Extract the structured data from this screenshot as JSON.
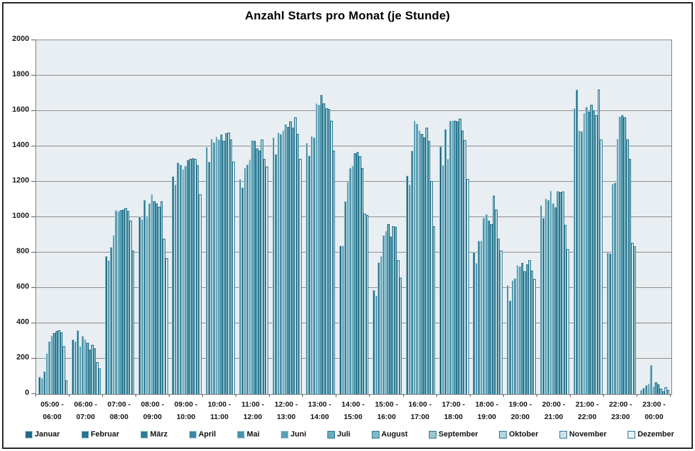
{
  "title": "Anzahl Starts pro Monat (je Stunde)",
  "colors": {
    "figure_bg": "#ffffff",
    "frame_border": "#262626",
    "plot_bg": "#e9eef2",
    "gridline": "#8c8c8c",
    "axis": "#595959",
    "text": "#111111"
  },
  "chart_data": {
    "type": "bar",
    "title": "Anzahl Starts pro Monat (je Stunde)",
    "xlabel": "",
    "ylabel": "",
    "ylim": [
      0,
      2000
    ],
    "ytick_step": 200,
    "yticks": [
      0,
      200,
      400,
      600,
      800,
      1000,
      1200,
      1400,
      1600,
      1800,
      2000
    ],
    "grid": true,
    "legend_position": "bottom",
    "categories": [
      [
        "05:00 -",
        "06:00"
      ],
      [
        "06:00 -",
        "07:00"
      ],
      [
        "07:00 -",
        "08:00"
      ],
      [
        "08:00 -",
        "09:00"
      ],
      [
        "09:00 -",
        "10:00"
      ],
      [
        "10:00 -",
        "11:00"
      ],
      [
        "11:00 -",
        "12:00"
      ],
      [
        "12:00 -",
        "13:00"
      ],
      [
        "13:00 -",
        "14:00"
      ],
      [
        "14:00 -",
        "15:00"
      ],
      [
        "15:00 -",
        "16:00"
      ],
      [
        "16:00 -",
        "17:00"
      ],
      [
        "17:00 -",
        "18:00"
      ],
      [
        "18:00 -",
        "19:00"
      ],
      [
        "19:00 -",
        "20:00"
      ],
      [
        "20:00 -",
        "21:00"
      ],
      [
        "21:00 -",
        "22:00"
      ],
      [
        "22:00 -",
        "23:00"
      ],
      [
        "23:00 -",
        "00:00"
      ]
    ],
    "series": [
      {
        "name": "Januar",
        "color": "#1e6c87",
        "border": "#a9cfda",
        "values": [
          100,
          310,
          780,
          1005,
          1230,
          1395,
          1215,
          1450,
          1420,
          840,
          590,
          1235,
          1400,
          805,
          615,
          1065,
          1615,
          800,
          25
        ]
      },
      {
        "name": "Februar",
        "color": "#26748f",
        "border": "#a9cfda",
        "values": [
          90,
          300,
          755,
          990,
          1185,
          1315,
          1170,
          1355,
          1350,
          840,
          555,
          1185,
          1295,
          740,
          530,
          995,
          1720,
          795,
          35
        ]
      },
      {
        "name": "März",
        "color": "#2f7d97",
        "border": "#a9cfda",
        "values": [
          130,
          360,
          830,
          1100,
          1310,
          1445,
          1280,
          1480,
          1460,
          1090,
          745,
          1375,
          1500,
          865,
          645,
          1105,
          1490,
          1190,
          50
        ]
      },
      {
        "name": "April",
        "color": "#3c88a0",
        "border": "#a9cfda",
        "values": [
          230,
          270,
          900,
          1000,
          1300,
          1425,
          1300,
          1470,
          1450,
          1200,
          780,
          1545,
          1330,
          865,
          655,
          1100,
          1485,
          1195,
          60
        ]
      },
      {
        "name": "Mai",
        "color": "#4893aa",
        "border": "#a9cfda",
        "values": [
          300,
          330,
          1040,
          1080,
          1270,
          1455,
          1325,
          1490,
          1645,
          1280,
          900,
          1530,
          1545,
          995,
          730,
          1150,
          1590,
          1445,
          165
        ]
      },
      {
        "name": "Juni",
        "color": "#579eb3",
        "border": "#9cc5d1",
        "values": [
          330,
          310,
          1030,
          1130,
          1290,
          1440,
          1435,
          1525,
          1635,
          1290,
          920,
          1490,
          1545,
          1015,
          720,
          1080,
          1625,
          1570,
          45
        ]
      },
      {
        "name": "Juli",
        "color": "#6aabbd",
        "border": "#2b768f",
        "values": [
          345,
          290,
          1040,
          1090,
          1320,
          1465,
          1430,
          1510,
          1690,
          1360,
          960,
          1470,
          1545,
          980,
          740,
          1055,
          1595,
          1575,
          65
        ]
      },
      {
        "name": "August",
        "color": "#81b9c8",
        "border": "#2b768f",
        "values": [
          355,
          250,
          1045,
          1080,
          1330,
          1430,
          1390,
          1540,
          1645,
          1370,
          890,
          1450,
          1540,
          960,
          695,
          1145,
          1635,
          1565,
          55
        ]
      },
      {
        "name": "September",
        "color": "#9ac7d2",
        "border": "#2b768f",
        "values": [
          360,
          280,
          1050,
          1060,
          1335,
          1475,
          1375,
          1505,
          1615,
          1345,
          950,
          1505,
          1555,
          1120,
          735,
          1140,
          1605,
          1440,
          30
        ]
      },
      {
        "name": "Oktober",
        "color": "#b3d5dd",
        "border": "#2b768f",
        "values": [
          350,
          260,
          1035,
          1090,
          1330,
          1480,
          1440,
          1565,
          1610,
          1280,
          945,
          1430,
          1490,
          1045,
          755,
          1145,
          1575,
          1330,
          15
        ]
      },
      {
        "name": "November",
        "color": "#cee3e8",
        "border": "#2b768f",
        "values": [
          270,
          180,
          980,
          880,
          1295,
          1440,
          1330,
          1470,
          1545,
          1020,
          755,
          1205,
          1435,
          880,
          700,
          955,
          1720,
          855,
          40
        ]
      },
      {
        "name": "Dezember",
        "color": "#eaf3f5",
        "border": "#2b768f",
        "values": [
          80,
          145,
          810,
          770,
          1130,
          1315,
          1285,
          1330,
          1375,
          1010,
          660,
          950,
          1215,
          810,
          650,
          820,
          1440,
          835,
          25
        ]
      }
    ]
  }
}
